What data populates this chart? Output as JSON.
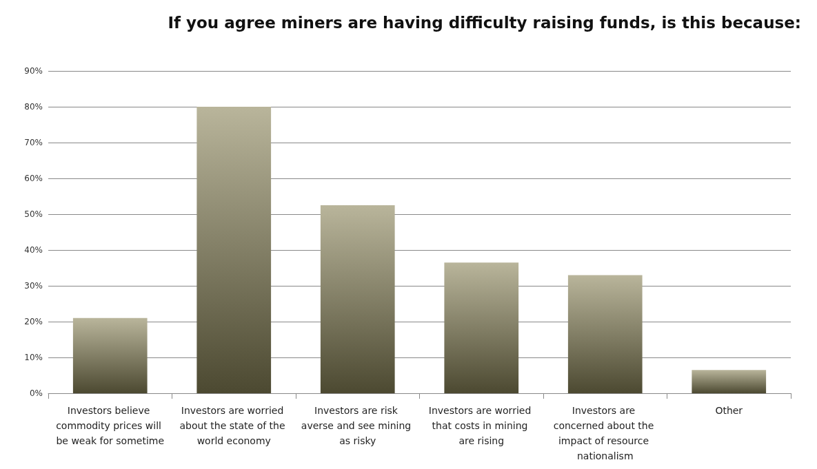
{
  "chart_data": {
    "type": "bar",
    "title": "If you agree miners are having difficulty raising funds, is this because:",
    "categories": [
      "Investors believe commodity prices will be weak for sometime",
      "Investors are worried about the state of the world economy",
      "Investors are risk averse and see mining as risky",
      "Investors are worried that costs in mining are rising",
      "Investors are concerned about the impact of resource nationalism",
      "Other"
    ],
    "values": [
      21,
      80,
      52.5,
      36.5,
      33,
      6.5
    ],
    "color": "#8b8459",
    "ylim": [
      0,
      90
    ],
    "yticks": [
      {
        "value": 0,
        "label": "0%"
      },
      {
        "value": 10,
        "label": "10%"
      },
      {
        "value": 20,
        "label": "20%"
      },
      {
        "value": 30,
        "label": "30%"
      },
      {
        "value": 40,
        "label": "40%"
      },
      {
        "value": 50,
        "label": "50%"
      },
      {
        "value": 60,
        "label": "60%"
      },
      {
        "value": 70,
        "label": "70%"
      },
      {
        "value": 80,
        "label": "80%"
      },
      {
        "value": 90,
        "label": "90%"
      }
    ],
    "grid": "y"
  }
}
